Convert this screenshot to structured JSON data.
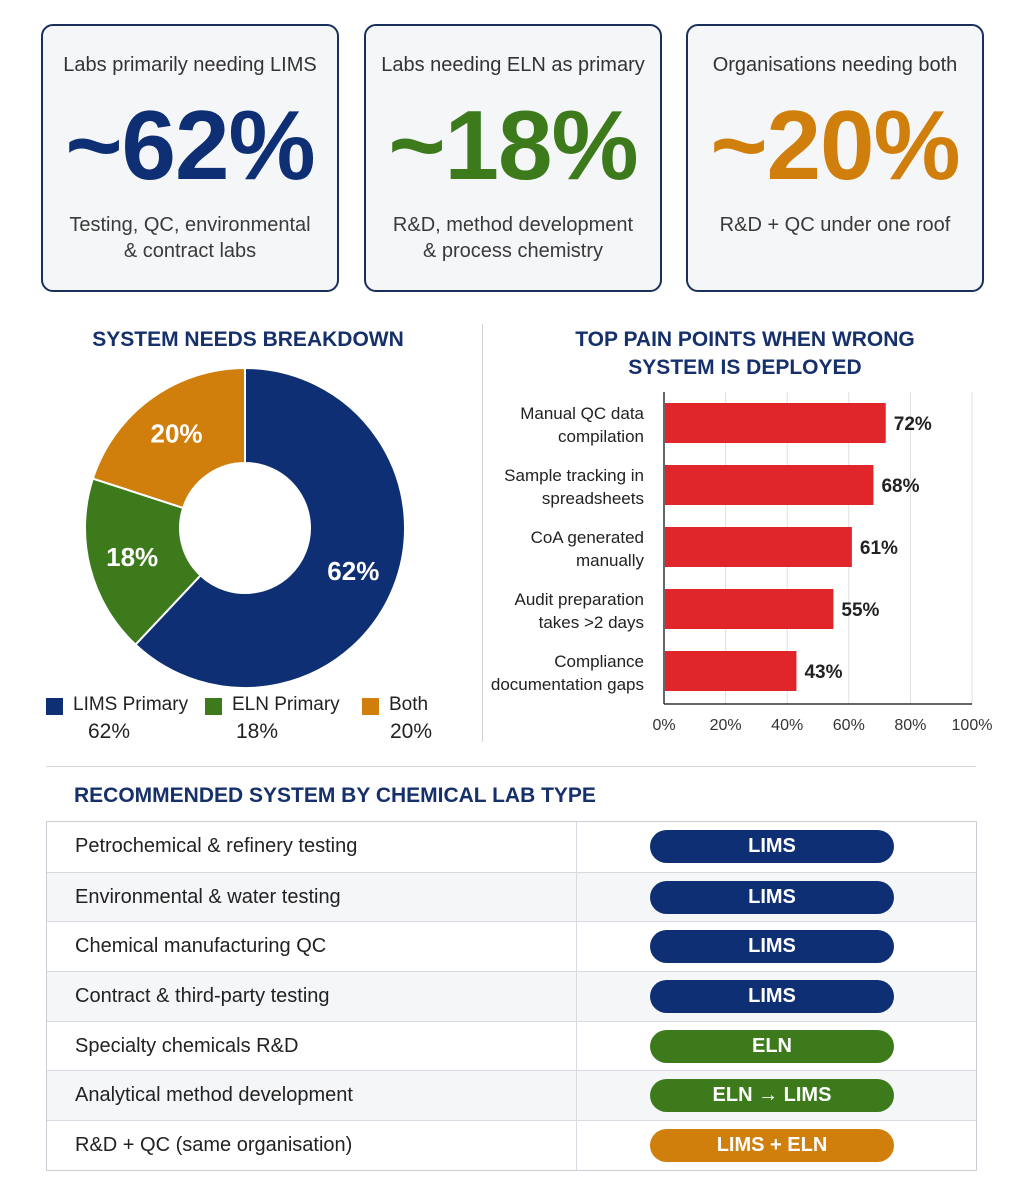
{
  "colors": {
    "lims": "#0e2f73",
    "eln": "#3d7a1c",
    "both": "#d07e0c",
    "pain": "#e0262b",
    "heading": "#16306b"
  },
  "cards": [
    {
      "label": "Labs primarily needing LIMS",
      "value": "~62%",
      "desc_lines": [
        "Testing, QC, environmental",
        "& contract labs"
      ],
      "color": "#0e2f73"
    },
    {
      "label": "Labs needing ELN as primary",
      "value": "~18%",
      "desc_lines": [
        "R&D, method development",
        "& process chemistry"
      ],
      "color": "#3d7a1c"
    },
    {
      "label": "Organisations needing both",
      "value": "~20%",
      "desc_lines": [
        "R&D + QC under one roof"
      ],
      "color": "#d07e0c"
    }
  ],
  "chart_data": [
    {
      "type": "pie",
      "title": "SYSTEM NEEDS BREAKDOWN",
      "categories": [
        "LIMS Primary",
        "ELN Primary",
        "Both"
      ],
      "values": [
        62,
        18,
        20
      ],
      "data_labels": [
        "62%",
        "18%",
        "20%"
      ],
      "legend_values": [
        "62%",
        "18%",
        "20%"
      ],
      "colors": [
        "#0e2f73",
        "#3d7a1c",
        "#d07e0c"
      ],
      "legend": "bottom"
    },
    {
      "type": "bar",
      "orientation": "horizontal",
      "title_lines": [
        "TOP PAIN POINTS WHEN WRONG",
        "SYSTEM IS DEPLOYED"
      ],
      "categories": [
        [
          "Manual QC data",
          "compilation"
        ],
        [
          "Sample tracking in",
          "spreadsheets"
        ],
        [
          "CoA generated",
          "manually"
        ],
        [
          "Audit preparation",
          "takes >2 days"
        ],
        [
          "Compliance",
          "documentation gaps"
        ]
      ],
      "values": [
        72,
        68,
        61,
        55,
        43
      ],
      "data_labels": [
        "72%",
        "68%",
        "61%",
        "55%",
        "43%"
      ],
      "xlim": [
        0,
        100
      ],
      "xticks": [
        0,
        20,
        40,
        60,
        80,
        100
      ],
      "xtick_labels": [
        "0%",
        "20%",
        "40%",
        "60%",
        "80%",
        "100%"
      ],
      "grid": "vertical",
      "color": "#e0262b"
    }
  ],
  "table": {
    "title": "RECOMMENDED SYSTEM BY CHEMICAL LAB TYPE",
    "rows": [
      {
        "type": "Petrochemical & refinery testing",
        "system": "LIMS",
        "color": "#0e2f73"
      },
      {
        "type": "Environmental & water testing",
        "system": "LIMS",
        "color": "#0e2f73"
      },
      {
        "type": "Chemical manufacturing QC",
        "system": "LIMS",
        "color": "#0e2f73"
      },
      {
        "type": "Contract & third-party testing",
        "system": "LIMS",
        "color": "#0e2f73"
      },
      {
        "type": "Specialty chemicals R&D",
        "system": "ELN",
        "color": "#3d7a1c"
      },
      {
        "type": "Analytical method development",
        "system": "ELN → LIMS",
        "color": "#3d7a1c"
      },
      {
        "type": "R&D + QC (same organisation)",
        "system": "LIMS + ELN",
        "color": "#d07e0c"
      }
    ]
  }
}
